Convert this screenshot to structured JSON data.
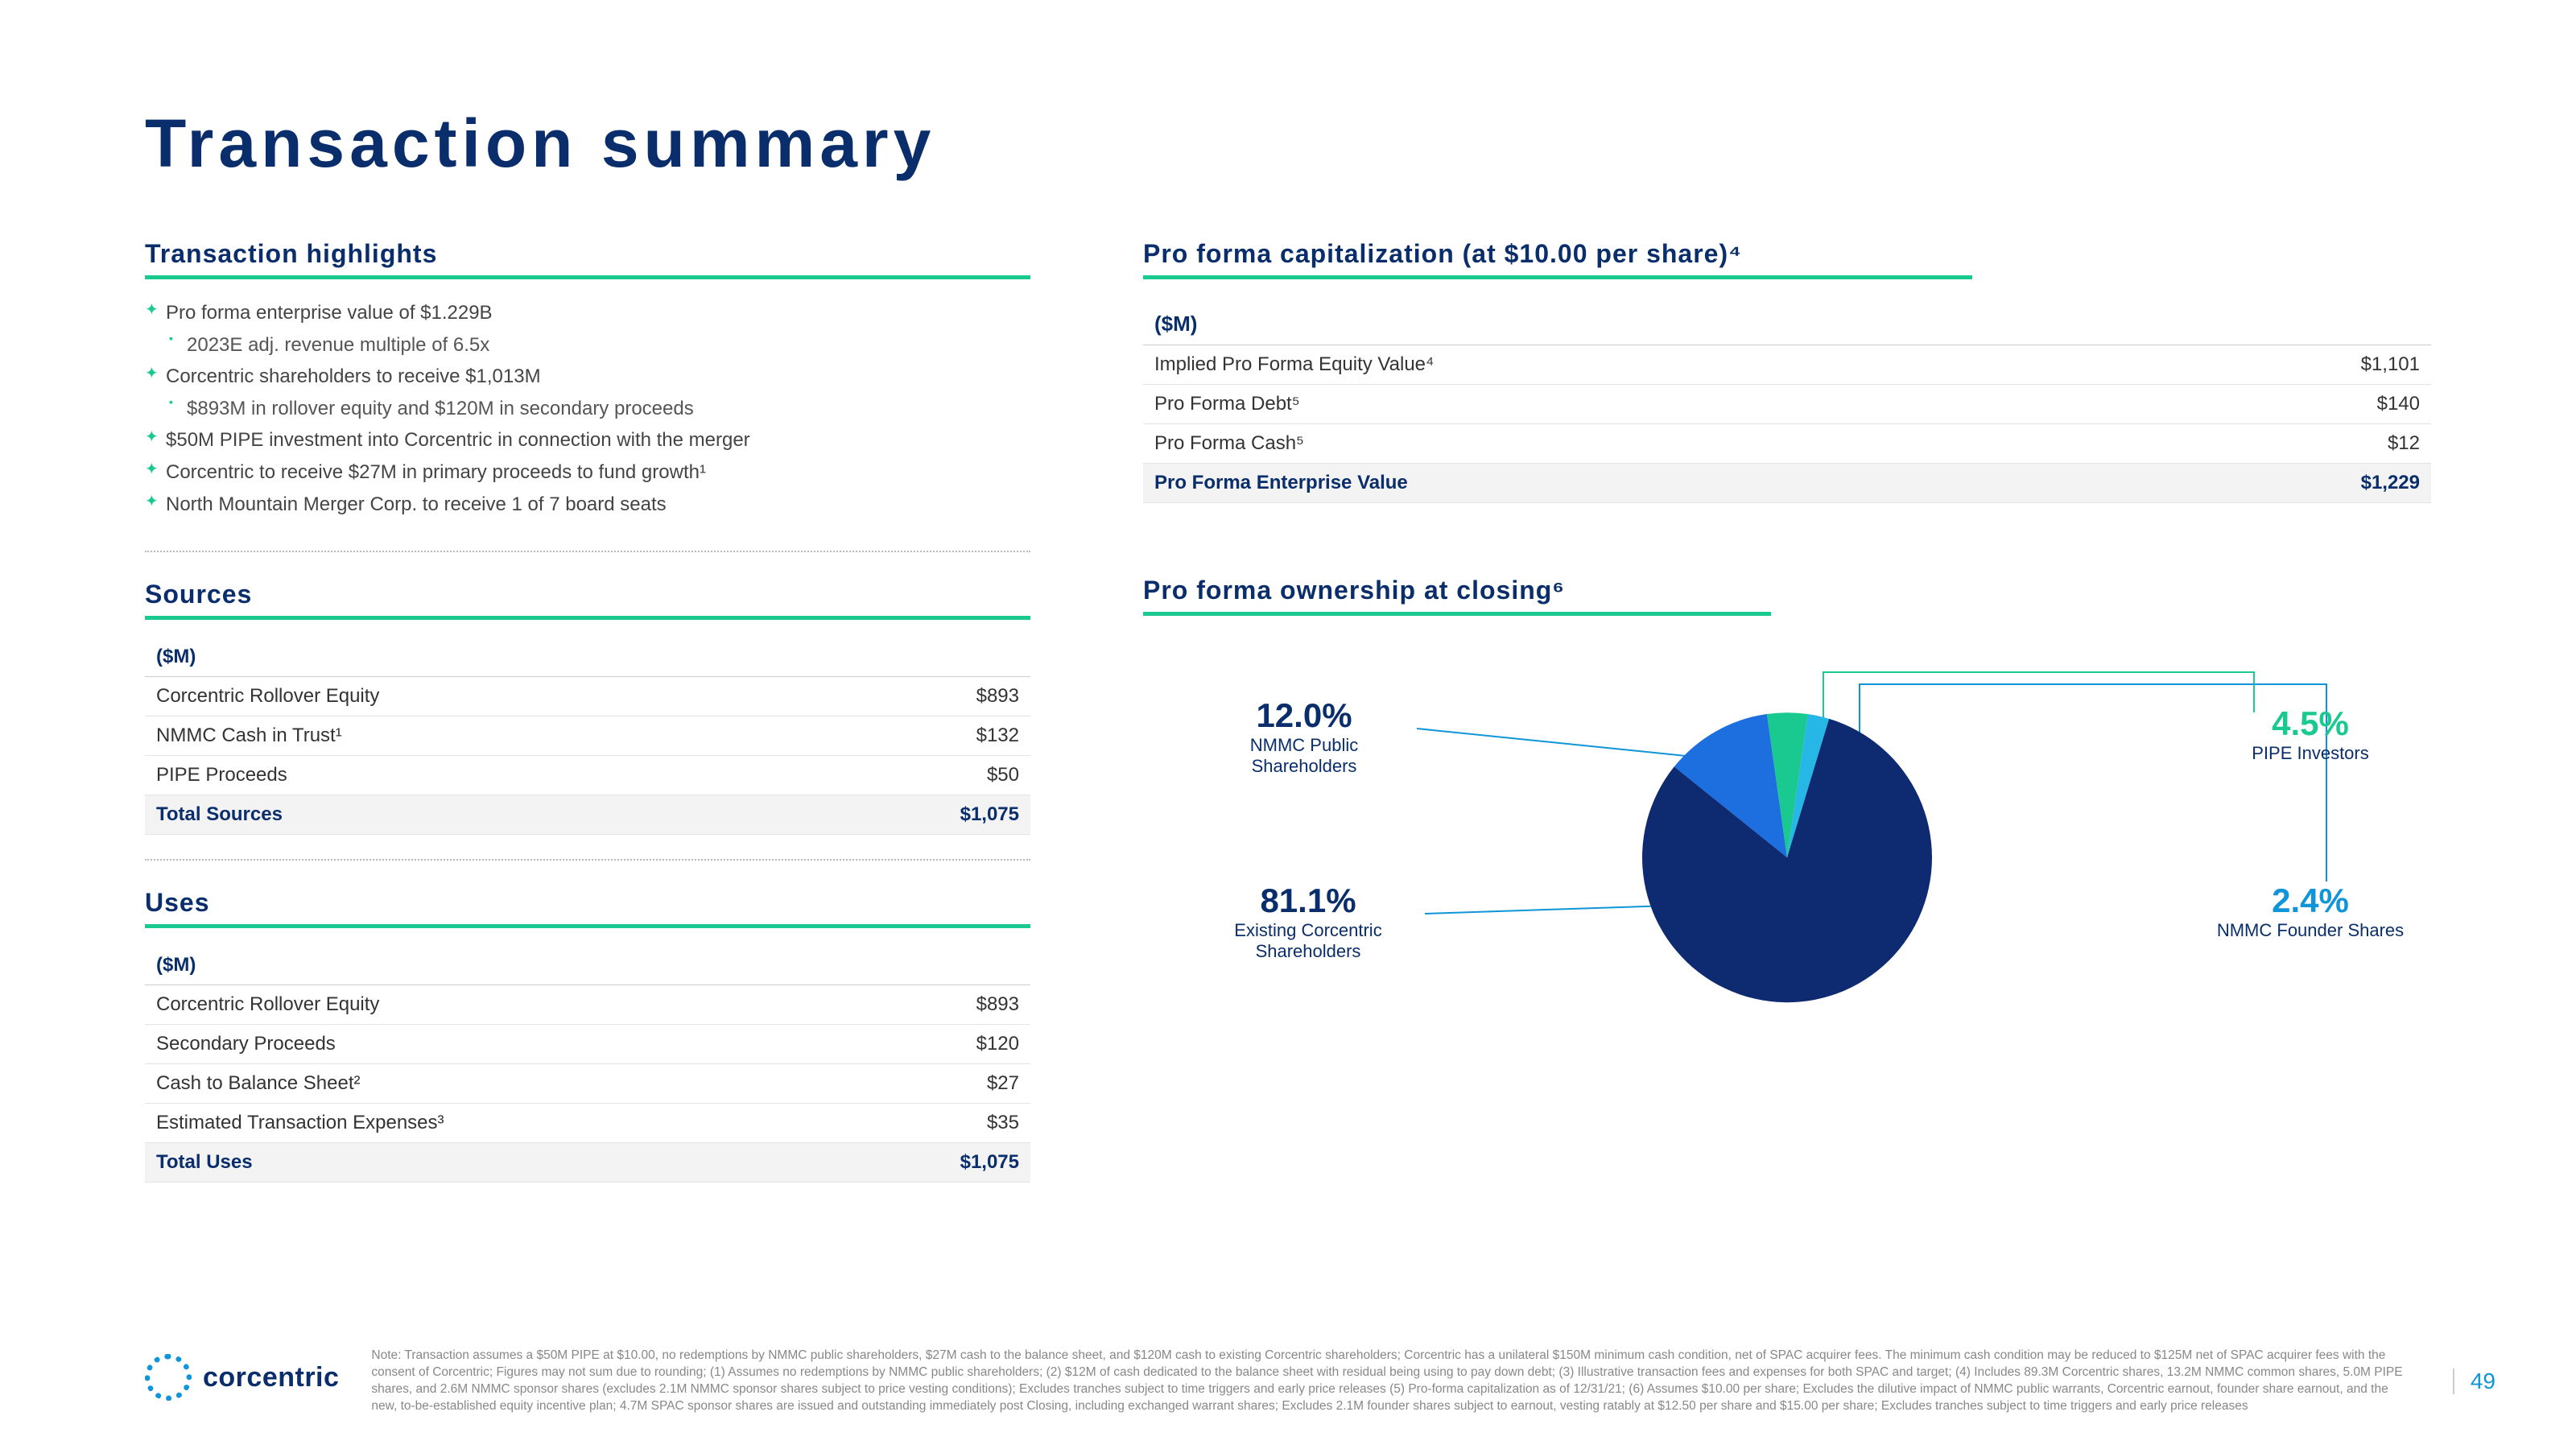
{
  "title": "Transaction summary",
  "page_number": "49",
  "brand": "corcentric",
  "colors": {
    "navy": "#0a2e6b",
    "green": "#19c98f",
    "blue": "#1095d8",
    "dark_navy": "#0e2a70"
  },
  "highlights": {
    "title": "Transaction highlights",
    "items": [
      {
        "lvl": 1,
        "text": "Pro forma enterprise value of $1.229B"
      },
      {
        "lvl": 2,
        "text": "2023E adj. revenue multiple of 6.5x"
      },
      {
        "lvl": 1,
        "text": "Corcentric shareholders to receive $1,013M"
      },
      {
        "lvl": 2,
        "text": "$893M in rollover equity and $120M in secondary proceeds"
      },
      {
        "lvl": 1,
        "text": "$50M PIPE investment into Corcentric in connection with the merger"
      },
      {
        "lvl": 1,
        "text": "Corcentric to receive $27M in primary proceeds to fund growth¹"
      },
      {
        "lvl": 1,
        "text": "North Mountain Merger Corp. to receive 1 of 7 board seats"
      }
    ]
  },
  "sources": {
    "title": "Sources",
    "header_unit": "($M)",
    "rows": [
      {
        "label": "Corcentric Rollover Equity",
        "value": "$893"
      },
      {
        "label": "NMMC Cash in Trust¹",
        "value": "$132"
      },
      {
        "label": "PIPE Proceeds",
        "value": "$50"
      }
    ],
    "total": {
      "label": "Total Sources",
      "value": "$1,075"
    }
  },
  "uses": {
    "title": "Uses",
    "header_unit": "($M)",
    "rows": [
      {
        "label": "Corcentric Rollover Equity",
        "value": "$893"
      },
      {
        "label": "Secondary Proceeds",
        "value": "$120"
      },
      {
        "label": "Cash to Balance Sheet²",
        "value": "$27"
      },
      {
        "label": "Estimated Transaction Expenses³",
        "value": "$35"
      }
    ],
    "total": {
      "label": "Total Uses",
      "value": "$1,075"
    }
  },
  "cap": {
    "title": "Pro forma capitalization (at $10.00 per share)⁴",
    "header_unit": "($M)",
    "rows": [
      {
        "label": "Implied Pro Forma Equity Value⁴",
        "value": "$1,101"
      },
      {
        "label": "Pro Forma Debt⁵",
        "value": "$140"
      },
      {
        "label": "Pro Forma Cash⁵",
        "value": "$12"
      }
    ],
    "total": {
      "label": "Pro Forma Enterprise Value",
      "value": "$1,229"
    }
  },
  "ownership": {
    "title": "Pro forma ownership at closing⁶",
    "slices": [
      {
        "name": "Existing Corcentric Shareholders",
        "pct": 81.1,
        "pct_label": "81.1%",
        "label": "Existing Corcentric\nShareholders",
        "color": "#0e2a70"
      },
      {
        "name": "NMMC Public Shareholders",
        "pct": 12.0,
        "pct_label": "12.0%",
        "label": "NMMC Public\nShareholders",
        "color": "#1d6fe0"
      },
      {
        "name": "PIPE Investors",
        "pct": 4.5,
        "pct_label": "4.5%",
        "label": "PIPE Investors",
        "color": "#19c98f"
      },
      {
        "name": "NMMC Founder Shares",
        "pct": 2.4,
        "pct_label": "2.4%",
        "label": "NMMC Founder Shares",
        "color": "#26b7e6"
      }
    ]
  },
  "footnote": "Note: Transaction assumes a $50M PIPE at $10.00, no redemptions by NMMC public shareholders, $27M cash to the balance sheet, and $120M cash to existing Corcentric shareholders; Corcentric has a unilateral $150M minimum cash condition, net of SPAC acquirer fees. The minimum cash condition may be reduced to $125M net of SPAC acquirer fees with the consent of Corcentric; Figures may not sum due to rounding; (1) Assumes no redemptions by NMMC public shareholders; (2) $12M of cash dedicated to the balance sheet with residual being using to pay down debt; (3) Illustrative transaction fees and expenses for both SPAC and target; (4) Includes 89.3M Corcentric shares, 13.2M NMMC common shares, 5.0M PIPE shares, and 2.6M NMMC sponsor shares (excludes 2.1M NMMC sponsor shares subject to price vesting conditions); Excludes tranches subject to time triggers and early price releases (5) Pro-forma capitalization as of 12/31/21; (6) Assumes $10.00 per share; Excludes the dilutive impact of NMMC public warrants, Corcentric earnout, founder share earnout, and the new, to-be-established equity incentive plan; 4.7M SPAC sponsor shares are issued and outstanding immediately post Closing, including exchanged warrant shares; Excludes 2.1M founder shares subject to earnout, vesting ratably at $12.50 per share and $15.00 per share; Excludes tranches subject to time triggers and early price releases"
}
